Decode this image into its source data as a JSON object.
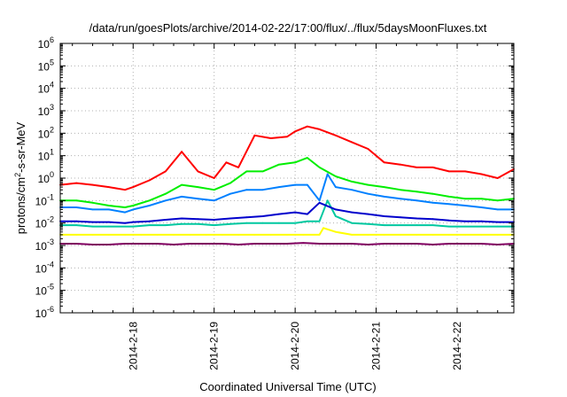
{
  "chart_data": {
    "type": "line",
    "title": "/data/run/goesPlots/archive/2014-02-22/17:00/flux/../flux/5daysMoonFluxes.txt",
    "xlabel": "Coordinated Universal Time (UTC)",
    "ylabel_parts": [
      "protons/cm",
      "2",
      "-s-sr-MeV"
    ],
    "y_scale": "log",
    "ylim_exp": [
      -6,
      6
    ],
    "y_ticks": [
      {
        "base": "10",
        "exp": "6"
      },
      {
        "base": "10",
        "exp": "5"
      },
      {
        "base": "10",
        "exp": "4"
      },
      {
        "base": "10",
        "exp": "3"
      },
      {
        "base": "10",
        "exp": "2"
      },
      {
        "base": "10",
        "exp": "1"
      },
      {
        "base": "10",
        "exp": "0"
      },
      {
        "base": "10",
        "exp": "-1"
      },
      {
        "base": "10",
        "exp": "-2"
      },
      {
        "base": "10",
        "exp": "-3"
      },
      {
        "base": "10",
        "exp": "-4"
      },
      {
        "base": "10",
        "exp": "-5"
      },
      {
        "base": "10",
        "exp": "-6"
      }
    ],
    "xlim_days": [
      17.1,
      22.7
    ],
    "x_ticks": [
      {
        "day": 18,
        "label": "2014-2-18"
      },
      {
        "day": 19,
        "label": "2014-2-19"
      },
      {
        "day": 20,
        "label": "2014-2-20"
      },
      {
        "day": 21,
        "label": "2014-2-21"
      },
      {
        "day": 22,
        "label": "2014-2-22"
      }
    ],
    "grid": "dotted",
    "series": [
      {
        "color": "#ff0000",
        "x": [
          17.1,
          17.3,
          17.5,
          17.7,
          17.9,
          18.0,
          18.2,
          18.4,
          18.6,
          18.8,
          19.0,
          19.15,
          19.3,
          19.5,
          19.7,
          19.9,
          20.0,
          20.15,
          20.3,
          20.5,
          20.7,
          20.9,
          21.1,
          21.3,
          21.5,
          21.7,
          21.9,
          22.1,
          22.3,
          22.5,
          22.7
        ],
        "y": [
          0.5,
          0.6,
          0.5,
          0.4,
          0.3,
          0.4,
          0.8,
          2,
          15,
          2,
          1,
          5,
          3,
          80,
          60,
          70,
          120,
          200,
          150,
          80,
          40,
          20,
          5,
          4,
          3,
          3,
          2,
          2,
          1.5,
          1,
          2.5
        ]
      },
      {
        "color": "#00ee00",
        "x": [
          17.1,
          17.3,
          17.5,
          17.7,
          17.9,
          18.0,
          18.2,
          18.4,
          18.6,
          18.8,
          19.0,
          19.2,
          19.4,
          19.6,
          19.8,
          20.0,
          20.15,
          20.3,
          20.5,
          20.7,
          20.9,
          21.1,
          21.3,
          21.5,
          21.7,
          21.9,
          22.1,
          22.3,
          22.5,
          22.7
        ],
        "y": [
          0.1,
          0.1,
          0.08,
          0.06,
          0.05,
          0.06,
          0.1,
          0.2,
          0.5,
          0.4,
          0.3,
          0.6,
          2,
          2,
          4,
          5,
          8,
          3,
          1.2,
          0.7,
          0.5,
          0.4,
          0.3,
          0.25,
          0.2,
          0.15,
          0.12,
          0.12,
          0.1,
          0.12
        ]
      },
      {
        "color": "#0080ff",
        "x": [
          17.1,
          17.3,
          17.5,
          17.7,
          17.9,
          18.0,
          18.2,
          18.4,
          18.6,
          18.8,
          19.0,
          19.2,
          19.4,
          19.6,
          19.8,
          20.0,
          20.15,
          20.3,
          20.4,
          20.5,
          20.7,
          20.9,
          21.1,
          21.3,
          21.5,
          21.7,
          21.9,
          22.1,
          22.3,
          22.5,
          22.7
        ],
        "y": [
          0.05,
          0.05,
          0.04,
          0.04,
          0.03,
          0.04,
          0.06,
          0.1,
          0.15,
          0.12,
          0.1,
          0.2,
          0.3,
          0.3,
          0.4,
          0.5,
          0.5,
          0.1,
          1.5,
          0.4,
          0.3,
          0.2,
          0.15,
          0.12,
          0.1,
          0.08,
          0.07,
          0.06,
          0.05,
          0.04,
          0.04
        ]
      },
      {
        "color": "#0000cc",
        "x": [
          17.1,
          17.3,
          17.5,
          17.7,
          17.9,
          18.0,
          18.2,
          18.4,
          18.6,
          18.8,
          19.0,
          19.2,
          19.4,
          19.6,
          19.8,
          20.0,
          20.15,
          20.3,
          20.5,
          20.7,
          20.9,
          21.1,
          21.3,
          21.5,
          21.7,
          21.9,
          22.1,
          22.3,
          22.5,
          22.7
        ],
        "y": [
          0.012,
          0.012,
          0.011,
          0.011,
          0.01,
          0.011,
          0.012,
          0.014,
          0.016,
          0.015,
          0.014,
          0.016,
          0.018,
          0.02,
          0.025,
          0.03,
          0.025,
          0.08,
          0.04,
          0.03,
          0.025,
          0.02,
          0.018,
          0.016,
          0.015,
          0.013,
          0.012,
          0.012,
          0.011,
          0.011
        ]
      },
      {
        "color": "#00c8a0",
        "x": [
          17.1,
          17.3,
          17.5,
          17.7,
          17.9,
          18.0,
          18.2,
          18.4,
          18.6,
          18.8,
          19.0,
          19.2,
          19.4,
          19.6,
          19.8,
          20.0,
          20.15,
          20.3,
          20.4,
          20.5,
          20.7,
          20.9,
          21.1,
          21.3,
          21.5,
          21.7,
          21.9,
          22.1,
          22.3,
          22.5,
          22.7
        ],
        "y": [
          0.008,
          0.008,
          0.007,
          0.007,
          0.007,
          0.007,
          0.008,
          0.008,
          0.009,
          0.009,
          0.008,
          0.009,
          0.01,
          0.01,
          0.01,
          0.01,
          0.012,
          0.012,
          0.1,
          0.02,
          0.01,
          0.009,
          0.008,
          0.008,
          0.008,
          0.008,
          0.007,
          0.007,
          0.007,
          0.007,
          0.007
        ]
      },
      {
        "color": "#ffff00",
        "x": [
          17.1,
          17.3,
          17.5,
          17.7,
          17.9,
          18.1,
          18.3,
          18.5,
          18.7,
          18.9,
          19.1,
          19.3,
          19.5,
          19.7,
          19.9,
          20.1,
          20.3,
          20.35,
          20.5,
          20.7,
          20.9,
          21.1,
          21.3,
          21.5,
          21.7,
          21.9,
          22.1,
          22.3,
          22.5,
          22.7
        ],
        "y": [
          0.003,
          0.003,
          0.003,
          0.003,
          0.003,
          0.003,
          0.003,
          0.003,
          0.003,
          0.003,
          0.003,
          0.003,
          0.003,
          0.003,
          0.003,
          0.003,
          0.003,
          0.006,
          0.004,
          0.003,
          0.003,
          0.003,
          0.003,
          0.003,
          0.003,
          0.003,
          0.003,
          0.003,
          0.003,
          0.003
        ]
      },
      {
        "color": "#800060",
        "x": [
          17.1,
          17.3,
          17.5,
          17.7,
          17.9,
          18.1,
          18.3,
          18.5,
          18.7,
          18.9,
          19.1,
          19.3,
          19.5,
          19.7,
          19.9,
          20.1,
          20.3,
          20.5,
          20.7,
          20.9,
          21.1,
          21.3,
          21.5,
          21.7,
          21.9,
          22.1,
          22.3,
          22.5,
          22.7
        ],
        "y": [
          0.0012,
          0.0012,
          0.0011,
          0.0011,
          0.0012,
          0.0012,
          0.0012,
          0.0011,
          0.0012,
          0.0012,
          0.0012,
          0.0011,
          0.0012,
          0.0012,
          0.0012,
          0.0013,
          0.0012,
          0.0012,
          0.0012,
          0.0011,
          0.0012,
          0.0012,
          0.0012,
          0.0011,
          0.0012,
          0.0012,
          0.0012,
          0.0011,
          0.0012
        ]
      }
    ]
  }
}
